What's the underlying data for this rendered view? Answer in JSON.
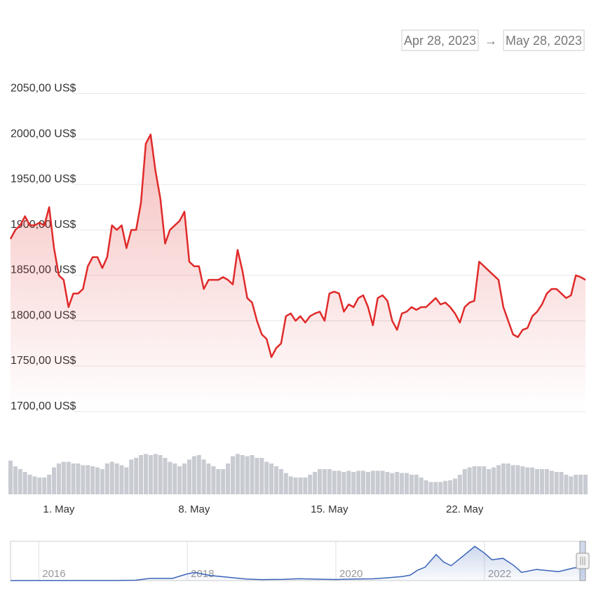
{
  "date_range": {
    "from": "Apr 28, 2023",
    "separator": "→",
    "to": "May 28, 2023"
  },
  "chart_data": [
    {
      "type": "line",
      "categories": [
        null,
        null,
        null,
        null,
        null,
        null,
        null,
        null,
        null,
        null,
        "1. May",
        null,
        null,
        null,
        null,
        null,
        null,
        null,
        null,
        null,
        null,
        null,
        null,
        null,
        null,
        null,
        null,
        null,
        null,
        null,
        null,
        null,
        null,
        null,
        null,
        null,
        null,
        null,
        "8. May",
        null,
        null,
        null,
        null,
        null,
        null,
        null,
        null,
        null,
        null,
        null,
        null,
        null,
        null,
        null,
        null,
        null,
        null,
        null,
        null,
        null,
        null,
        null,
        null,
        null,
        null,
        null,
        "15. May",
        null,
        null,
        null,
        null,
        null,
        null,
        null,
        null,
        null,
        null,
        null,
        null,
        null,
        null,
        null,
        null,
        null,
        null,
        null,
        null,
        null,
        null,
        null,
        null,
        null,
        null,
        null,
        "22. May",
        null,
        null,
        null,
        null,
        null,
        null,
        null,
        null,
        null,
        null,
        null,
        null,
        null,
        null,
        null,
        null,
        null,
        null,
        null,
        null,
        null,
        null,
        null,
        null,
        null
      ],
      "series": [
        {
          "color": "#e02a2a",
          "values": [
            1890,
            1900,
            1905,
            1915,
            1905,
            1905,
            1908,
            1905,
            1925,
            1880,
            1850,
            1845,
            1815,
            1830,
            1830,
            1835,
            1860,
            1870,
            1870,
            1858,
            1870,
            1905,
            1900,
            1905,
            1880,
            1900,
            1900,
            1930,
            1995,
            2005,
            1965,
            1935,
            1885,
            1900,
            1905,
            1910,
            1920,
            1865,
            1860,
            1860,
            1835,
            1845,
            1845,
            1845,
            1848,
            1845,
            1840,
            1878,
            1855,
            1825,
            1820,
            1800,
            1785,
            1780,
            1760,
            1770,
            1775,
            1805,
            1808,
            1800,
            1805,
            1798,
            1805,
            1808,
            1810,
            1800,
            1830,
            1832,
            1830,
            1810,
            1818,
            1815,
            1825,
            1828,
            1815,
            1795,
            1825,
            1828,
            1822,
            1800,
            1790,
            1808,
            1810,
            1815,
            1812,
            1815,
            1815,
            1820,
            1825,
            1818,
            1820,
            1815,
            1808,
            1798,
            1815,
            1820,
            1822,
            1865,
            1860,
            1855,
            1850,
            1845,
            1815,
            1800,
            1785,
            1782,
            1790,
            1792,
            1805,
            1810,
            1818,
            1830,
            1835,
            1835,
            1830,
            1825,
            1828,
            1850,
            1848,
            1845
          ]
        }
      ],
      "ylim": [
        1700,
        2062
      ],
      "yticks": [
        {
          "value": 1700,
          "label": "1700,00 US$"
        },
        {
          "value": 1750,
          "label": "1750,00 US$"
        },
        {
          "value": 1800,
          "label": "1800,00 US$"
        },
        {
          "value": 1850,
          "label": "1850,00 US$"
        },
        {
          "value": 1900,
          "label": "1900,00 US$"
        },
        {
          "value": 1950,
          "label": "1950,00 US$"
        },
        {
          "value": 2000,
          "label": "2000,00 US$"
        },
        {
          "value": 2050,
          "label": "2050,00 US$"
        }
      ],
      "grid": true
    },
    {
      "type": "bar",
      "color": "#c8cbd1",
      "ylim": [
        0,
        100
      ],
      "values": [
        60,
        50,
        45,
        40,
        35,
        32,
        30,
        30,
        35,
        48,
        55,
        58,
        58,
        55,
        55,
        52,
        52,
        50,
        48,
        45,
        55,
        58,
        55,
        52,
        48,
        62,
        65,
        70,
        72,
        70,
        72,
        70,
        65,
        58,
        55,
        50,
        55,
        62,
        68,
        70,
        62,
        55,
        50,
        45,
        45,
        55,
        68,
        72,
        70,
        68,
        70,
        65,
        65,
        58,
        55,
        50,
        45,
        38,
        32,
        30,
        30,
        30,
        35,
        40,
        45,
        45,
        45,
        42,
        42,
        40,
        42,
        40,
        42,
        42,
        40,
        42,
        42,
        42,
        40,
        38,
        40,
        38,
        38,
        35,
        35,
        30,
        25,
        22,
        22,
        22,
        24,
        25,
        28,
        35,
        45,
        48,
        50,
        50,
        50,
        45,
        48,
        52,
        55,
        55,
        52,
        52,
        50,
        48,
        48,
        45,
        45,
        45,
        42,
        40,
        40,
        35,
        32,
        35,
        35,
        35
      ]
    },
    {
      "type": "line",
      "color": "#3a64b8",
      "x": [
        2015.62,
        2016.0,
        2016.5,
        2017.0,
        2017.3,
        2017.5,
        2017.8,
        2018.0,
        2018.1,
        2018.3,
        2018.5,
        2018.8,
        2019.0,
        2019.3,
        2019.5,
        2019.8,
        2020.0,
        2020.2,
        2020.5,
        2020.7,
        2020.9,
        2021.0,
        2021.1,
        2021.2,
        2021.35,
        2021.45,
        2021.55,
        2021.7,
        2021.87,
        2022.0,
        2022.1,
        2022.25,
        2022.4,
        2022.5,
        2022.7,
        2022.9,
        2023.0,
        2023.2,
        2023.36
      ],
      "values": [
        1,
        10,
        12,
        10,
        50,
        300,
        300,
        900,
        1100,
        700,
        500,
        200,
        130,
        170,
        250,
        180,
        140,
        200,
        240,
        380,
        550,
        730,
        1400,
        1800,
        3500,
        2500,
        2000,
        3200,
        4600,
        3700,
        2800,
        3000,
        2000,
        1100,
        1500,
        1300,
        1200,
        1700,
        1850
      ],
      "xlim": [
        2015.62,
        2023.36
      ],
      "ylim": [
        0,
        5000
      ],
      "xticks": [
        2016,
        2018,
        2020,
        2022
      ]
    }
  ]
}
